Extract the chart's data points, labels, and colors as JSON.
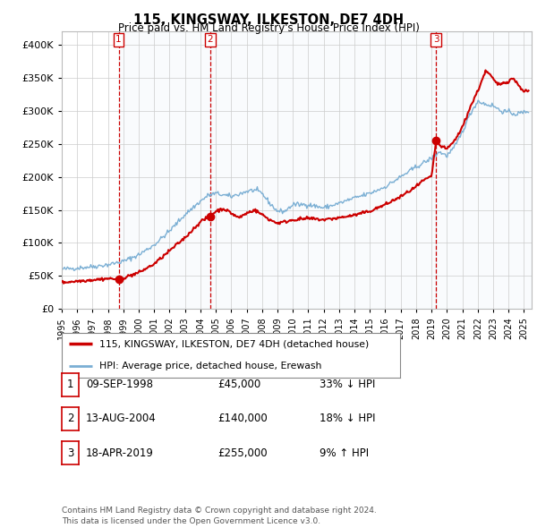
{
  "title": "115, KINGSWAY, ILKESTON, DE7 4DH",
  "subtitle": "Price paid vs. HM Land Registry's House Price Index (HPI)",
  "xlim_start": 1995.0,
  "xlim_end": 2025.5,
  "ylim": [
    0,
    420000
  ],
  "yticks": [
    0,
    50000,
    100000,
    150000,
    200000,
    250000,
    300000,
    350000,
    400000
  ],
  "sale_dates": [
    1998.69,
    2004.62,
    2019.3
  ],
  "sale_prices": [
    45000,
    140000,
    255000
  ],
  "sale_labels": [
    "1",
    "2",
    "3"
  ],
  "legend_line1": "115, KINGSWAY, ILKESTON, DE7 4DH (detached house)",
  "legend_line2": "HPI: Average price, detached house, Erewash",
  "table_rows": [
    [
      "1",
      "09-SEP-1998",
      "£45,000",
      "33% ↓ HPI"
    ],
    [
      "2",
      "13-AUG-2004",
      "£140,000",
      "18% ↓ HPI"
    ],
    [
      "3",
      "18-APR-2019",
      "£255,000",
      "9% ↑ HPI"
    ]
  ],
  "footer": "Contains HM Land Registry data © Crown copyright and database right 2024.\nThis data is licensed under the Open Government Licence v3.0.",
  "hpi_color": "#7bafd4",
  "price_color": "#cc0000",
  "vline_color": "#cc0000",
  "dot_color": "#cc0000",
  "grid_color": "#cccccc",
  "background_color": "#ffffff",
  "hpi_anchors": [
    [
      1995.0,
      60000
    ],
    [
      1996.0,
      62000
    ],
    [
      1997.0,
      64000
    ],
    [
      1998.0,
      67000
    ],
    [
      1999.0,
      72000
    ],
    [
      2000.0,
      82000
    ],
    [
      2001.0,
      97000
    ],
    [
      2002.0,
      118000
    ],
    [
      2003.0,
      143000
    ],
    [
      2004.0,
      163000
    ],
    [
      2004.5,
      172000
    ],
    [
      2005.0,
      175000
    ],
    [
      2006.0,
      170000
    ],
    [
      2007.0,
      178000
    ],
    [
      2007.5,
      180000
    ],
    [
      2008.0,
      175000
    ],
    [
      2008.5,
      160000
    ],
    [
      2009.0,
      148000
    ],
    [
      2009.5,
      148000
    ],
    [
      2010.0,
      158000
    ],
    [
      2011.0,
      158000
    ],
    [
      2012.0,
      153000
    ],
    [
      2013.0,
      160000
    ],
    [
      2014.0,
      168000
    ],
    [
      2015.0,
      175000
    ],
    [
      2016.0,
      185000
    ],
    [
      2017.0,
      200000
    ],
    [
      2018.0,
      215000
    ],
    [
      2019.0,
      228000
    ],
    [
      2019.5,
      238000
    ],
    [
      2020.0,
      232000
    ],
    [
      2020.5,
      245000
    ],
    [
      2021.0,
      268000
    ],
    [
      2021.5,
      295000
    ],
    [
      2022.0,
      315000
    ],
    [
      2022.5,
      310000
    ],
    [
      2023.0,
      308000
    ],
    [
      2023.5,
      300000
    ],
    [
      2024.0,
      298000
    ],
    [
      2024.5,
      295000
    ],
    [
      2025.0,
      298000
    ],
    [
      2025.3,
      300000
    ]
  ],
  "price_anchors": [
    [
      1995.0,
      40000
    ],
    [
      1996.0,
      42000
    ],
    [
      1997.0,
      44000
    ],
    [
      1998.0,
      46000
    ],
    [
      1998.69,
      45000
    ],
    [
      1999.0,
      47000
    ],
    [
      2000.0,
      55000
    ],
    [
      2001.0,
      68000
    ],
    [
      2002.0,
      88000
    ],
    [
      2003.0,
      108000
    ],
    [
      2004.0,
      132000
    ],
    [
      2004.62,
      140000
    ],
    [
      2005.0,
      148000
    ],
    [
      2005.5,
      152000
    ],
    [
      2006.0,
      145000
    ],
    [
      2006.5,
      138000
    ],
    [
      2007.0,
      145000
    ],
    [
      2007.5,
      150000
    ],
    [
      2008.0,
      143000
    ],
    [
      2008.5,
      135000
    ],
    [
      2009.0,
      130000
    ],
    [
      2009.5,
      132000
    ],
    [
      2010.0,
      135000
    ],
    [
      2011.0,
      137000
    ],
    [
      2012.0,
      135000
    ],
    [
      2013.0,
      138000
    ],
    [
      2014.0,
      142000
    ],
    [
      2015.0,
      148000
    ],
    [
      2016.0,
      158000
    ],
    [
      2017.0,
      170000
    ],
    [
      2018.0,
      185000
    ],
    [
      2018.5,
      195000
    ],
    [
      2019.0,
      200000
    ],
    [
      2019.3,
      255000
    ],
    [
      2019.5,
      248000
    ],
    [
      2020.0,
      242000
    ],
    [
      2020.5,
      255000
    ],
    [
      2021.0,
      275000
    ],
    [
      2021.5,
      305000
    ],
    [
      2022.0,
      330000
    ],
    [
      2022.5,
      360000
    ],
    [
      2022.8,
      355000
    ],
    [
      2023.0,
      348000
    ],
    [
      2023.3,
      340000
    ],
    [
      2023.6,
      342000
    ],
    [
      2024.0,
      345000
    ],
    [
      2024.3,
      350000
    ],
    [
      2024.6,
      340000
    ],
    [
      2025.0,
      330000
    ],
    [
      2025.3,
      330000
    ]
  ]
}
